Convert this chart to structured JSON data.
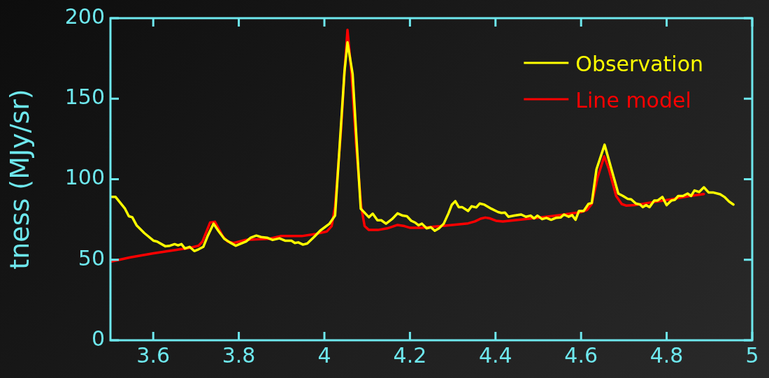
{
  "chart_data": {
    "type": "line",
    "ylabel": "tness (MJy/sr)",
    "xlim": [
      3.5,
      5
    ],
    "xticks": [
      3.6,
      3.8,
      4,
      4.2,
      4.4,
      4.6,
      4.8,
      5
    ],
    "ylim": [
      0,
      200
    ],
    "yticks": [
      0,
      50,
      100,
      150,
      200
    ],
    "grid": false,
    "legend": "top right",
    "marker": "none",
    "line_style": "solid",
    "series": [
      {
        "name": "Observation",
        "color": "#ffff00",
        "x": [
          3.502,
          3.512,
          3.534,
          3.543,
          3.551,
          3.561,
          3.579,
          3.601,
          3.609,
          3.628,
          3.639,
          3.65,
          3.658,
          3.666,
          3.674,
          3.685,
          3.696,
          3.706,
          3.717,
          3.728,
          3.741,
          3.752,
          3.766,
          3.779,
          3.793,
          3.806,
          3.817,
          3.828,
          3.841,
          3.852,
          3.866,
          3.879,
          3.895,
          3.909,
          3.923,
          3.931,
          3.939,
          3.95,
          3.96,
          3.977,
          3.99,
          4.012,
          4.025,
          4.036,
          4.047,
          4.054,
          4.066,
          4.077,
          4.085,
          4.09,
          4.104,
          4.113,
          4.124,
          4.133,
          4.144,
          4.158,
          4.171,
          4.183,
          4.193,
          4.203,
          4.212,
          4.22,
          4.228,
          4.239,
          4.249,
          4.258,
          4.268,
          4.279,
          4.29,
          4.298,
          4.306,
          4.314,
          4.322,
          4.336,
          4.344,
          4.355,
          4.363,
          4.374,
          4.39,
          4.406,
          4.414,
          4.422,
          4.43,
          4.444,
          4.46,
          4.471,
          4.482,
          4.49,
          4.498,
          4.509,
          4.519,
          4.53,
          4.541,
          4.552,
          4.56,
          4.571,
          4.579,
          4.587,
          4.595,
          4.606,
          4.617,
          4.625,
          4.636,
          4.655,
          4.671,
          4.687,
          4.698,
          4.709,
          4.717,
          4.728,
          4.738,
          4.744,
          4.752,
          4.76,
          4.771,
          4.779,
          4.79,
          4.8,
          4.811,
          4.819,
          4.827,
          4.838,
          4.849,
          4.857,
          4.865,
          4.876,
          4.887,
          4.898,
          4.908,
          4.925,
          4.935,
          4.946,
          4.956
        ],
        "values": [
          89,
          89,
          81.7,
          77,
          76.4,
          71.4,
          66.6,
          61.8,
          61.3,
          58.4,
          58.7,
          59.7,
          58.9,
          59.7,
          57,
          58,
          55.4,
          56.5,
          58,
          65.2,
          72.4,
          68,
          63,
          60.8,
          58.7,
          60.1,
          61.3,
          63.7,
          65,
          64.1,
          63.7,
          62.3,
          63.3,
          61.8,
          61.8,
          60.4,
          60.8,
          59.4,
          60.1,
          64.4,
          68,
          72.4,
          77.4,
          122,
          166.8,
          185,
          165.3,
          116.3,
          81.7,
          80.3,
          76.4,
          78.6,
          74.5,
          74.5,
          72.4,
          75.2,
          78.8,
          77.4,
          77,
          74.2,
          73.1,
          71.4,
          72.4,
          69.5,
          70.2,
          68,
          69.5,
          72.4,
          78.8,
          84.2,
          86.4,
          82.7,
          82.7,
          80.3,
          83.2,
          82.5,
          84.9,
          84.2,
          81.7,
          79.6,
          79.1,
          79.3,
          76.7,
          77.4,
          78.1,
          76.7,
          77.4,
          75.7,
          77.4,
          75.2,
          76,
          74.8,
          76,
          76.2,
          78.1,
          76.7,
          77.7,
          74.8,
          80.3,
          80.3,
          84.6,
          85.3,
          106.2,
          121.4,
          106.2,
          91.1,
          89.6,
          87.8,
          87.5,
          84.9,
          84.3,
          82.7,
          83.9,
          82.7,
          86.8,
          86.8,
          89,
          83.9,
          86.8,
          87.2,
          89.6,
          89.6,
          91.1,
          89.6,
          93,
          92.1,
          95,
          91.8,
          91.8,
          90.7,
          89,
          86.1,
          84.3
        ]
      },
      {
        "name": "Line model",
        "color": "#ff0000",
        "x": [
          3.502,
          3.547,
          3.601,
          3.655,
          3.682,
          3.706,
          3.715,
          3.733,
          3.744,
          3.763,
          3.774,
          3.788,
          3.817,
          3.871,
          3.898,
          3.947,
          3.978,
          4.006,
          4.017,
          4.025,
          4.039,
          4.047,
          4.054,
          4.063,
          4.074,
          4.086,
          4.094,
          4.104,
          4.125,
          4.147,
          4.171,
          4.187,
          4.201,
          4.228,
          4.282,
          4.336,
          4.352,
          4.365,
          4.376,
          4.387,
          4.401,
          4.417,
          4.444,
          4.498,
          4.552,
          4.6,
          4.614,
          4.625,
          4.638,
          4.654,
          4.665,
          4.682,
          4.695,
          4.706,
          4.725,
          4.757,
          4.811,
          4.854,
          4.887
        ],
        "values": [
          48.9,
          51.5,
          54,
          56.2,
          57.2,
          58.7,
          61.3,
          73.1,
          73.6,
          64.4,
          61.3,
          60.4,
          62.4,
          63,
          64.7,
          64.7,
          65.9,
          67.6,
          70.9,
          83.2,
          130.7,
          166.8,
          192.7,
          166.8,
          122,
          83.2,
          70.9,
          68.5,
          68.5,
          69.5,
          71.6,
          70.9,
          69.8,
          69.8,
          71.2,
          72.6,
          73.8,
          75.5,
          76.2,
          75.7,
          74.2,
          73.8,
          74.5,
          76,
          77.8,
          79.6,
          81,
          84.6,
          100.5,
          114.2,
          106.2,
          89.6,
          84.6,
          83.6,
          83.9,
          85.3,
          87.5,
          89.6,
          90.8
        ]
      }
    ]
  }
}
